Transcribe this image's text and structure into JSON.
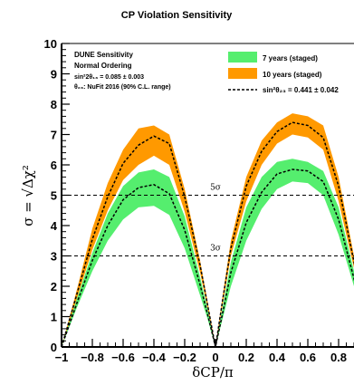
{
  "chart_data": {
    "type": "area",
    "title": "CP Violation Sensitivity",
    "xlabel": "δCP/π",
    "ylabel": "σ = √Δχ²",
    "xlim": [
      -1,
      1
    ],
    "ylim": [
      0,
      10
    ],
    "x_ticks": [
      "−1",
      "−0.8",
      "−0.6",
      "−0.4",
      "−0.2",
      "0",
      "0.2",
      "0.4",
      "0.6",
      "0.8"
    ],
    "y_ticks": [
      "0",
      "1",
      "2",
      "3",
      "4",
      "5",
      "6",
      "7",
      "8",
      "9",
      "10"
    ],
    "legend_text": {
      "line1": "DUNE Sensitivity",
      "line2": "Normal Ordering",
      "line3": "sin²2θ₁₃ = 0.085 ± 0.003",
      "line4": "θ₂₃: NuFit 2016 (90% C.L. range)"
    },
    "series": [
      {
        "name": "7 years (staged)",
        "color": "#55ee6e",
        "kind": "band",
        "x": [
          -1,
          -0.9,
          -0.8,
          -0.7,
          -0.6,
          -0.5,
          -0.4,
          -0.3,
          -0.2,
          -0.1,
          -0.05,
          0,
          0.05,
          0.1,
          0.2,
          0.3,
          0.4,
          0.5,
          0.6,
          0.7,
          0.8,
          0.9,
          1
        ],
        "lower": [
          0,
          1.3,
          2.5,
          3.5,
          4.2,
          4.6,
          4.65,
          4.35,
          3.25,
          1.7,
          0.9,
          0,
          1.0,
          2.0,
          3.5,
          4.55,
          5.2,
          5.45,
          5.4,
          5.0,
          3.7,
          2.0,
          0
        ],
        "upper": [
          0,
          1.6,
          3.1,
          4.4,
          5.3,
          5.75,
          5.85,
          5.6,
          4.3,
          2.3,
          1.2,
          0,
          1.4,
          2.8,
          4.6,
          5.6,
          6.1,
          6.2,
          6.1,
          5.8,
          4.6,
          2.5,
          0
        ]
      },
      {
        "name": "10 years (staged)",
        "color": "#ff9900",
        "kind": "band",
        "x": [
          -1,
          -0.9,
          -0.8,
          -0.7,
          -0.6,
          -0.5,
          -0.4,
          -0.3,
          -0.2,
          -0.1,
          -0.05,
          0,
          0.05,
          0.1,
          0.2,
          0.3,
          0.4,
          0.5,
          0.6,
          0.7,
          0.8,
          0.9,
          1
        ],
        "lower": [
          0,
          1.6,
          3.2,
          4.5,
          5.5,
          6.0,
          6.3,
          6.0,
          4.45,
          2.45,
          1.25,
          0,
          1.5,
          3.0,
          4.8,
          6.0,
          6.7,
          7.0,
          6.9,
          6.5,
          4.8,
          2.6,
          0
        ],
        "upper": [
          0,
          1.9,
          3.9,
          5.4,
          6.5,
          7.2,
          7.3,
          7.0,
          5.2,
          2.85,
          1.45,
          0,
          1.8,
          3.5,
          5.6,
          6.8,
          7.4,
          7.7,
          7.6,
          7.3,
          5.6,
          3.0,
          0
        ]
      },
      {
        "name": "sin²θ₂₃ = 0.441 ± 0.042",
        "color": "#000000",
        "kind": "dashed-line",
        "x": [
          -1,
          -0.9,
          -0.8,
          -0.7,
          -0.6,
          -0.5,
          -0.4,
          -0.3,
          -0.2,
          -0.1,
          -0.05,
          0,
          0.05,
          0.1,
          0.2,
          0.3,
          0.4,
          0.5,
          0.6,
          0.7,
          0.8,
          0.9,
          1
        ],
        "y": [
          0,
          1.75,
          3.55,
          4.95,
          6.05,
          6.65,
          6.95,
          6.7,
          4.95,
          2.7,
          1.35,
          0,
          1.65,
          3.25,
          5.3,
          6.45,
          7.1,
          7.4,
          7.3,
          6.9,
          5.3,
          2.8,
          0
        ]
      },
      {
        "name": "7 years dashed",
        "color": "#000000",
        "kind": "dashed-line",
        "x": [
          -1,
          -0.9,
          -0.8,
          -0.7,
          -0.6,
          -0.5,
          -0.4,
          -0.3,
          -0.2,
          -0.1,
          -0.05,
          0,
          0.05,
          0.1,
          0.2,
          0.3,
          0.4,
          0.5,
          0.6,
          0.7,
          0.8,
          0.9,
          1
        ],
        "y": [
          0,
          1.45,
          2.85,
          4.0,
          4.85,
          5.25,
          5.35,
          5.05,
          3.85,
          2.05,
          1.05,
          0,
          1.2,
          2.45,
          4.1,
          5.1,
          5.7,
          5.85,
          5.8,
          5.45,
          4.2,
          2.25,
          0
        ]
      }
    ],
    "reference_lines": [
      {
        "y": 5,
        "label": "5σ"
      },
      {
        "y": 3,
        "label": "3σ"
      }
    ],
    "grid": false,
    "legend_position": "top"
  }
}
